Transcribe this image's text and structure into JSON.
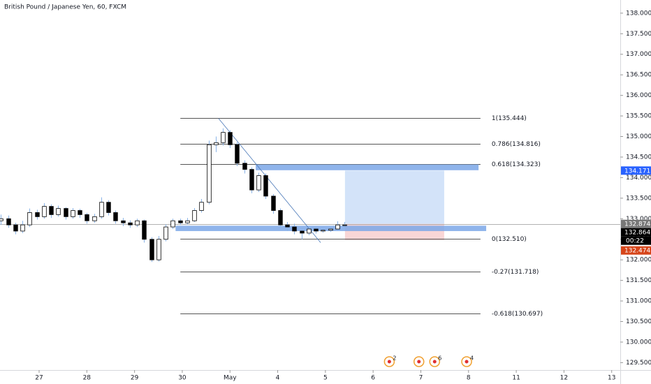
{
  "chart_data": {
    "type": "candlestick",
    "title": "British Pound / Japanese Yen, 60, FXCM",
    "xlim": [
      -0.82,
      12.18
    ],
    "ylim": [
      129.32,
      138.32
    ],
    "xticks": [
      {
        "value": 0,
        "label": "27"
      },
      {
        "value": 1,
        "label": "28"
      },
      {
        "value": 2,
        "label": "29"
      },
      {
        "value": 3,
        "label": "30"
      },
      {
        "value": 4,
        "label": "May"
      },
      {
        "value": 5,
        "label": "4"
      },
      {
        "value": 6,
        "label": "5"
      },
      {
        "value": 7,
        "label": "6"
      },
      {
        "value": 8,
        "label": "7"
      },
      {
        "value": 9,
        "label": "8"
      },
      {
        "value": 10,
        "label": "11"
      },
      {
        "value": 11,
        "label": "12"
      },
      {
        "value": 12,
        "label": "13"
      }
    ],
    "yticks": [
      {
        "value": 129.5,
        "label": "129.500"
      },
      {
        "value": 130,
        "label": "130.000"
      },
      {
        "value": 130.5,
        "label": "130.500"
      },
      {
        "value": 131,
        "label": "131.000"
      },
      {
        "value": 131.5,
        "label": "131.500"
      },
      {
        "value": 132,
        "label": "132.000"
      },
      {
        "value": 132.5,
        "label": "132.500"
      },
      {
        "value": 133,
        "label": "133.000"
      },
      {
        "value": 133.5,
        "label": "133.500"
      },
      {
        "value": 134,
        "label": "134.000"
      },
      {
        "value": 134.5,
        "label": "134.500"
      },
      {
        "value": 135,
        "label": "135.000"
      },
      {
        "value": 135.5,
        "label": "135.500"
      },
      {
        "value": 136,
        "label": "136.000"
      },
      {
        "value": 136.5,
        "label": "136.500"
      },
      {
        "value": 137,
        "label": "137.000"
      },
      {
        "value": 137.5,
        "label": "137.500"
      },
      {
        "value": 138,
        "label": "138.000"
      }
    ],
    "up_color": "#ffffff",
    "down_color": "#000000",
    "border_color": "#000000",
    "wick_color": "#8ab4e8",
    "x": [
      -0.8,
      -0.65,
      -0.5,
      -0.35,
      -0.2,
      -0.05,
      0.1,
      0.25,
      0.4,
      0.55,
      0.7,
      0.85,
      1.0,
      1.15,
      1.3,
      1.45,
      1.6,
      1.75,
      1.9,
      2.05,
      2.2,
      2.35,
      2.5,
      2.65,
      2.8,
      2.95,
      3.1,
      3.25,
      3.4,
      3.55,
      3.7,
      3.85,
      4.0,
      4.15,
      4.3,
      4.45,
      4.6,
      4.75,
      4.9,
      5.05,
      5.2,
      5.35,
      5.5,
      5.65,
      5.8,
      5.95,
      6.1,
      6.25,
      6.4
    ],
    "open": [
      132.95,
      133.0,
      132.85,
      132.7,
      132.85,
      133.15,
      133.05,
      133.3,
      133.1,
      133.25,
      133.05,
      133.2,
      133.1,
      132.95,
      133.05,
      133.4,
      133.15,
      132.95,
      132.9,
      132.85,
      132.95,
      132.5,
      132.0,
      132.5,
      132.8,
      132.95,
      132.9,
      132.95,
      133.2,
      133.4,
      134.8,
      134.85,
      135.1,
      134.8,
      134.35,
      134.2,
      133.7,
      134.05,
      133.55,
      133.2,
      132.85,
      132.8,
      132.7,
      132.65,
      132.75,
      132.7,
      132.72,
      132.75,
      132.85
    ],
    "high": [
      133.1,
      133.08,
      132.9,
      132.95,
      133.25,
      133.22,
      133.38,
      133.35,
      133.32,
      133.28,
      133.26,
      133.24,
      133.14,
      133.12,
      133.52,
      133.45,
      133.2,
      133.02,
      132.96,
      133.0,
      132.98,
      132.55,
      132.58,
      132.86,
      133.0,
      133.0,
      133.02,
      133.26,
      133.48,
      134.9,
      135.0,
      135.2,
      135.15,
      134.86,
      134.42,
      134.25,
      134.12,
      134.1,
      133.6,
      133.25,
      132.92,
      132.88,
      132.78,
      132.8,
      132.8,
      132.78,
      132.8,
      132.94,
      132.92
    ],
    "low": [
      132.85,
      132.78,
      132.62,
      132.65,
      132.8,
      132.98,
      133.0,
      133.02,
      133.05,
      132.98,
      133.0,
      133.02,
      132.88,
      132.9,
      133.0,
      133.08,
      132.88,
      132.82,
      132.78,
      132.8,
      132.42,
      131.95,
      131.96,
      132.45,
      132.75,
      132.85,
      132.86,
      132.92,
      133.15,
      133.35,
      134.62,
      134.78,
      134.72,
      134.28,
      134.1,
      133.62,
      133.65,
      133.48,
      133.12,
      132.78,
      132.7,
      132.62,
      132.5,
      132.6,
      132.64,
      132.66,
      132.68,
      132.7,
      132.76
    ],
    "close": [
      133.0,
      132.85,
      132.7,
      132.85,
      133.15,
      133.05,
      133.3,
      133.1,
      133.25,
      133.05,
      133.2,
      133.1,
      132.95,
      133.05,
      133.4,
      133.15,
      132.95,
      132.9,
      132.85,
      132.95,
      132.5,
      132.0,
      132.5,
      132.8,
      132.95,
      132.9,
      132.95,
      133.2,
      133.4,
      134.8,
      134.85,
      135.1,
      134.8,
      134.35,
      134.2,
      133.7,
      134.05,
      133.55,
      133.2,
      132.85,
      132.8,
      132.7,
      132.65,
      132.75,
      132.7,
      132.72,
      132.75,
      132.85,
      132.85
    ],
    "fib": {
      "x_start": 2.96,
      "x_end": 9.25,
      "color": "#555555",
      "levels": [
        {
          "label": "1(135.444)",
          "price": 135.444
        },
        {
          "label": "0.786(134.816)",
          "price": 134.816
        },
        {
          "label": "0.618(134.323)",
          "price": 134.323
        },
        {
          "label": "0(132.510)",
          "price": 132.51
        },
        {
          "label": "-0.27(131.718)",
          "price": 131.718
        },
        {
          "label": "-0.618(130.697)",
          "price": 130.697
        }
      ]
    },
    "trendline": {
      "x": [
        3.76,
        5.9
      ],
      "y": [
        135.44,
        132.42
      ],
      "color": "#4a78b8"
    },
    "zones": [
      {
        "x0": 4.54,
        "x1": 9.21,
        "y0": 134.18,
        "y1": 134.32,
        "color": "#7ba7e8"
      },
      {
        "x0": 2.86,
        "x1": 9.37,
        "y0": 132.7,
        "y1": 132.83,
        "color": "#7ba7e8"
      }
    ],
    "position": {
      "x0": 6.41,
      "x1": 8.49,
      "entry": 132.874,
      "target": 134.171,
      "stop": 132.474,
      "profit_color": "#d3e3f9",
      "loss_color": "#f9d6d6"
    },
    "last_price": 132.864,
    "badges": [
      {
        "value": 134.171,
        "color": "#2962ff"
      },
      {
        "value": 132.874,
        "color": "#777777"
      },
      {
        "value": 132.864,
        "color": "#000000"
      },
      {
        "value": 132.474,
        "color": "#d6451a"
      }
    ],
    "countdown": "00:22",
    "events": [
      {
        "x": 7.34,
        "count": 2
      },
      {
        "x": 7.96
      },
      {
        "x": 8.29,
        "count": 6
      },
      {
        "x": 8.96,
        "count": 4
      }
    ]
  }
}
